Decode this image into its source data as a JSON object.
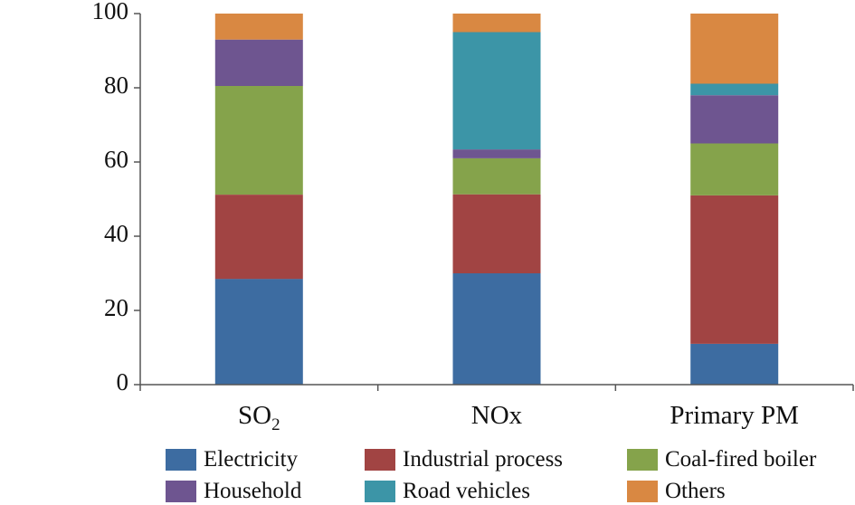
{
  "chart_data": {
    "type": "bar",
    "stacked": true,
    "categories": [
      "SO2",
      "NOx",
      "Primary PM"
    ],
    "category_labels": [
      {
        "main": "SO",
        "sub": "2"
      },
      {
        "main": "NOx",
        "sub": ""
      },
      {
        "main": "Primary PM",
        "sub": ""
      }
    ],
    "series": [
      {
        "name": "Electricity",
        "color": "#3D6CA1",
        "values": [
          28.5,
          30,
          11
        ]
      },
      {
        "name": "Industrial process",
        "color": "#A14443",
        "values": [
          22.7,
          21.3,
          40
        ]
      },
      {
        "name": "Coal-fired boiler",
        "color": "#85A34B",
        "values": [
          29.3,
          9.7,
          14
        ]
      },
      {
        "name": "Household",
        "color": "#6E5590",
        "values": [
          12.5,
          2.4,
          13
        ]
      },
      {
        "name": "Road vehicles",
        "color": "#3C95A7",
        "values": [
          0,
          31.6,
          3.1
        ]
      },
      {
        "name": "Others",
        "color": "#D98842",
        "values": [
          7,
          5,
          18.9
        ]
      }
    ],
    "ylim": [
      0,
      100
    ],
    "yticks": [
      0,
      20,
      40,
      60,
      80,
      100
    ],
    "xlabel": "",
    "ylabel": "",
    "title": "",
    "grid": false,
    "legend_position": "bottom"
  }
}
